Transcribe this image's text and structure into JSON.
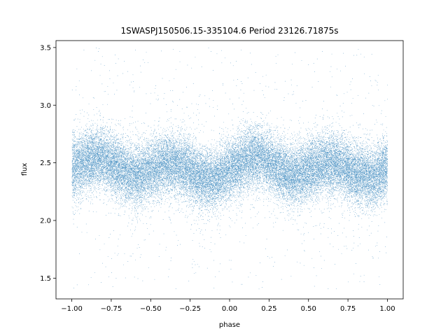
{
  "chart_data": {
    "type": "scatter",
    "title": "1SWASPJ150506.15-335104.6 Period 23126.71875s",
    "xlabel": "phase",
    "ylabel": "flux",
    "xlim": [
      -1.1,
      1.1
    ],
    "ylim": [
      1.32,
      3.56
    ],
    "x_ticks": [
      -1.0,
      -0.75,
      -0.5,
      -0.25,
      0.0,
      0.25,
      0.5,
      0.75,
      1.0
    ],
    "x_tick_labels": [
      "−1.00",
      "−0.75",
      "−0.50",
      "−0.25",
      "0.00",
      "0.25",
      "0.50",
      "0.75",
      "1.00"
    ],
    "y_ticks": [
      1.5,
      2.0,
      2.5,
      3.0,
      3.5
    ],
    "y_tick_labels": [
      "1.5",
      "2.0",
      "2.5",
      "3.0",
      "3.5"
    ],
    "grid": false,
    "legend": "none",
    "point_color": "#1f77b4",
    "series": [
      {
        "trend_x": [
          -1.0,
          -0.9,
          -0.8,
          -0.7,
          -0.6,
          -0.5,
          -0.4,
          -0.3,
          -0.2,
          -0.1,
          0.0,
          0.1,
          0.2,
          0.3,
          0.4,
          0.5,
          0.6,
          0.7,
          0.8,
          0.9,
          1.0
        ],
        "trend_y": [
          2.45,
          2.52,
          2.55,
          2.45,
          2.38,
          2.44,
          2.5,
          2.47,
          2.38,
          2.35,
          2.44,
          2.53,
          2.55,
          2.45,
          2.38,
          2.44,
          2.5,
          2.48,
          2.4,
          2.37,
          2.45
        ],
        "core_spread": 0.13,
        "outlier_range": [
          1.4,
          3.5
        ],
        "approx_points": 36000
      }
    ]
  }
}
